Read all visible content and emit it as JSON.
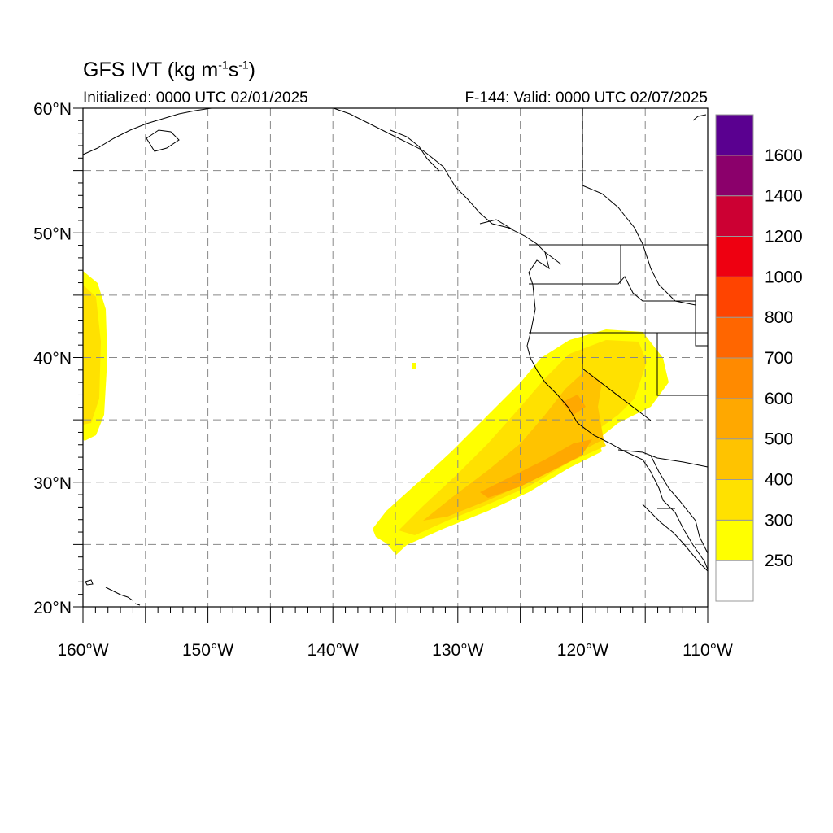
{
  "title": {
    "base": "GFS IVT (kg m",
    "exp1": "-1",
    "mid": "s",
    "exp2": "-1",
    "end": ")"
  },
  "initialized": "Initialized: 0000 UTC 02/01/2025",
  "valid": "F-144: Valid: 0000 UTC 02/07/2025",
  "map": {
    "lon_range": [
      -160,
      -110
    ],
    "lat_range": [
      20,
      60
    ],
    "lat_labels": [
      {
        "lat": 60,
        "text": "60°N"
      },
      {
        "lat": 50,
        "text": "50°N"
      },
      {
        "lat": 40,
        "text": "40°N"
      },
      {
        "lat": 30,
        "text": "30°N"
      },
      {
        "lat": 20,
        "text": "20°N"
      }
    ],
    "lon_labels": [
      {
        "lon": -160,
        "text": "160°W"
      },
      {
        "lon": -150,
        "text": "150°W"
      },
      {
        "lon": -140,
        "text": "140°W"
      },
      {
        "lon": -130,
        "text": "130°W"
      },
      {
        "lon": -120,
        "text": "120°W"
      },
      {
        "lon": -110,
        "text": "110°W"
      }
    ]
  },
  "colorbar": {
    "colors": [
      "#ffff00",
      "#ffe100",
      "#ffc300",
      "#ffa800",
      "#ff8a00",
      "#ff6600",
      "#ff4400",
      "#ee0011",
      "#cc0033",
      "#8b006b",
      "#5a0090"
    ],
    "labels": [
      "250",
      "300",
      "400",
      "500",
      "600",
      "700",
      "800",
      "1000",
      "1200",
      "1400",
      "1600"
    ]
  }
}
